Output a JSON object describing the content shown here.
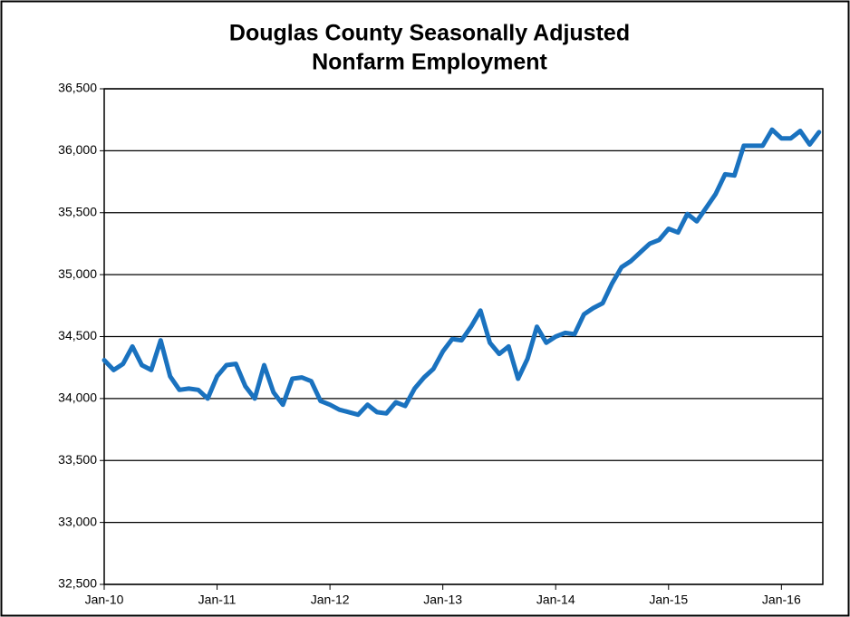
{
  "chart_data": {
    "type": "line",
    "title": [
      "Douglas County Seasonally Adjusted",
      "Nonfarm Employment"
    ],
    "categories": [
      "Jan-10",
      null,
      null,
      null,
      null,
      null,
      null,
      null,
      null,
      null,
      null,
      null,
      "Jan-11",
      null,
      null,
      null,
      null,
      null,
      null,
      null,
      null,
      null,
      null,
      null,
      "Jan-12",
      null,
      null,
      null,
      null,
      null,
      null,
      null,
      null,
      null,
      null,
      null,
      "Jan-13",
      null,
      null,
      null,
      null,
      null,
      null,
      null,
      null,
      null,
      null,
      null,
      "Jan-14",
      null,
      null,
      null,
      null,
      null,
      null,
      null,
      null,
      null,
      null,
      null,
      "Jan-15",
      null,
      null,
      null,
      null,
      null,
      null,
      null,
      null,
      null,
      null,
      null,
      "Jan-16",
      null,
      null,
      null,
      null
    ],
    "series": [
      {
        "name": "Nonfarm Employment",
        "color": "#1a72bf",
        "values": [
          34310,
          34230,
          34280,
          34420,
          34270,
          34230,
          34470,
          34180,
          34070,
          34080,
          34070,
          34000,
          34180,
          34270,
          34280,
          34100,
          34000,
          34270,
          34050,
          33950,
          34160,
          34170,
          34140,
          33980,
          33950,
          33910,
          33890,
          33870,
          33950,
          33890,
          33880,
          33970,
          33940,
          34080,
          34170,
          34240,
          34380,
          34480,
          34470,
          34580,
          34710,
          34450,
          34360,
          34420,
          34160,
          34320,
          34580,
          34450,
          34500,
          34530,
          34520,
          34680,
          34730,
          34770,
          34930,
          35060,
          35110,
          35180,
          35250,
          35280,
          35370,
          35340,
          35490,
          35430,
          35540,
          35650,
          35810,
          35800,
          36040,
          36040,
          36040,
          36170,
          36100,
          36100,
          36160,
          36050,
          36150
        ]
      }
    ],
    "ylim": [
      32500,
      36500
    ],
    "yticks": [
      {
        "value": 32500,
        "label": "32,500"
      },
      {
        "value": 33000,
        "label": "33,000"
      },
      {
        "value": 33500,
        "label": "33,500"
      },
      {
        "value": 34000,
        "label": "34,000"
      },
      {
        "value": 34500,
        "label": "34,500"
      },
      {
        "value": 35000,
        "label": "35,000"
      },
      {
        "value": 35500,
        "label": "35,500"
      },
      {
        "value": 36000,
        "label": "36,000"
      },
      {
        "value": 36500,
        "label": "36,500"
      }
    ],
    "grid": true
  }
}
